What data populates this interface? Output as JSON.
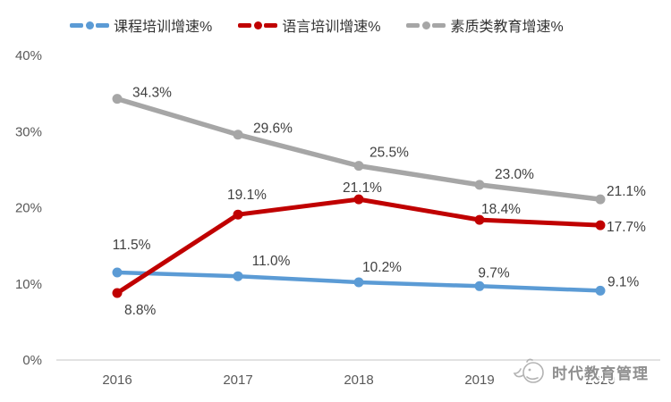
{
  "chart_data": {
    "type": "line",
    "categories": [
      "2016",
      "2017",
      "2018",
      "2019",
      "2020"
    ],
    "series": [
      {
        "name": "课程培训增速%",
        "color": "#5B9BD5",
        "values": [
          11.5,
          11.0,
          10.2,
          9.7,
          9.1
        ],
        "labels": [
          "11.5%",
          "11.0%",
          "10.2%",
          "9.7%",
          "9.1%"
        ]
      },
      {
        "name": "语言培训增速%",
        "color": "#C00000",
        "values": [
          8.8,
          19.1,
          21.1,
          18.4,
          17.7
        ],
        "labels": [
          "8.8%",
          "19.1%",
          "21.1%",
          "18.4%",
          "17.7%"
        ]
      },
      {
        "name": "素质类教育增速%",
        "color": "#A6A6A6",
        "values": [
          34.3,
          29.6,
          25.5,
          23.0,
          21.1
        ],
        "labels": [
          "34.3%",
          "29.6%",
          "25.5%",
          "23.0%",
          "21.1%"
        ]
      }
    ],
    "y_ticks": [
      "0%",
      "10%",
      "20%",
      "30%",
      "40%"
    ],
    "y_tick_values": [
      0,
      10,
      20,
      30,
      40
    ],
    "ylim": [
      0,
      40
    ],
    "title": "",
    "xlabel": "",
    "ylabel": "",
    "grid": false,
    "legend_position": "top",
    "axis_line_color": "#D9D9D9"
  },
  "watermark": {
    "text": "时代教育管理"
  }
}
